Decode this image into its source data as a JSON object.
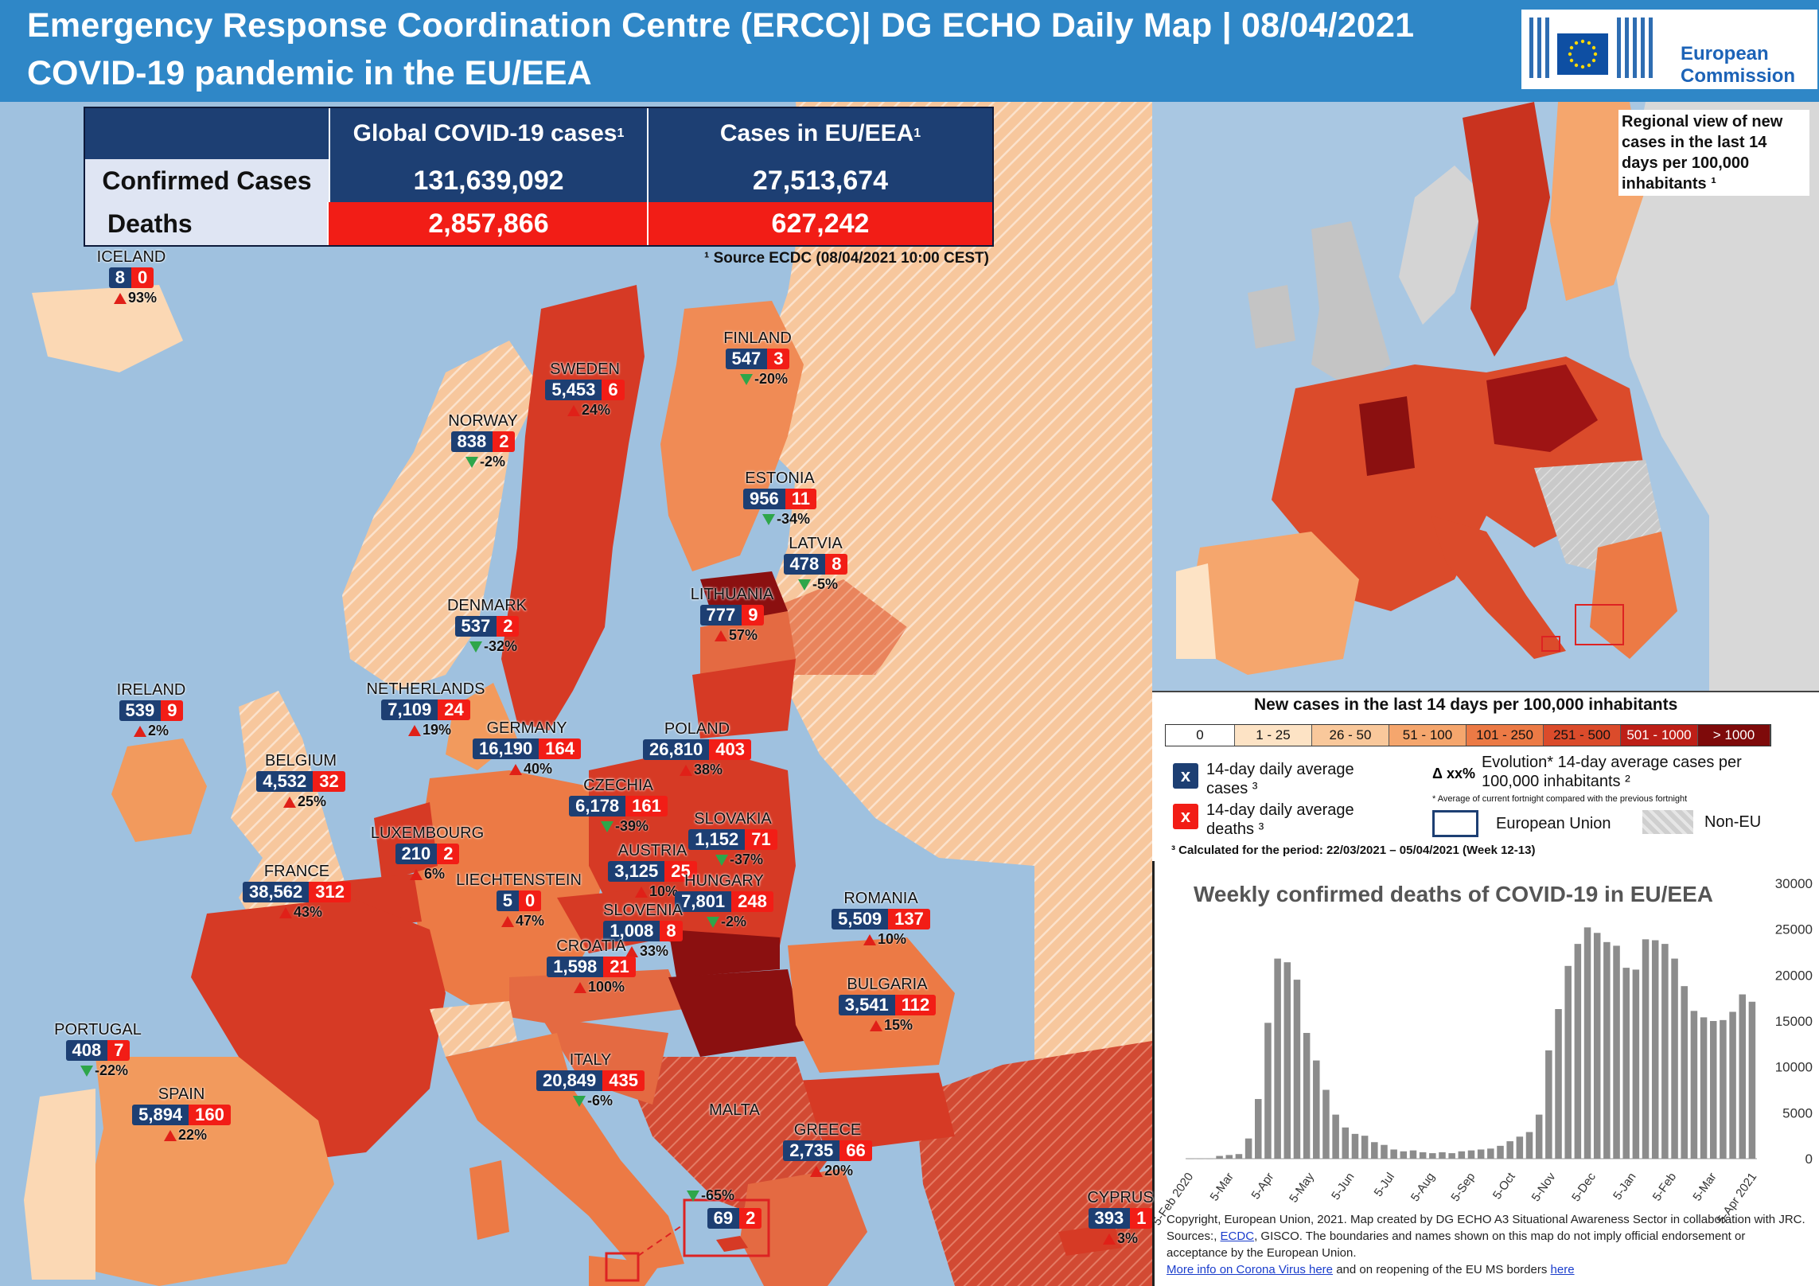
{
  "header": {
    "title_line1": "Emergency Response Coordination Centre (ERCC)| DG ECHO Daily Map | 08/04/2021",
    "title_line2": "COVID-19 pandemic in the EU/EEA",
    "logo_text_1": "European",
    "logo_text_2": "Commission"
  },
  "stats_table": {
    "col_global": "Global COVID-19 cases",
    "col_eu": "Cases in EU/EEA",
    "footnote_mark": "1",
    "row_confirmed_label": "Confirmed Cases",
    "row_deaths_label": "Deaths",
    "global_confirmed": "131,639,092",
    "eu_confirmed": "27,513,674",
    "global_deaths": "2,857,866",
    "eu_deaths": "627,242",
    "source": "¹ Source ECDC (08/04/2021 10:00 CEST)"
  },
  "countries": [
    {
      "name": "ICELAND",
      "cases": "8",
      "deaths": "0",
      "evo": "93%",
      "dir": "up"
    },
    {
      "name": "FINLAND",
      "cases": "547",
      "deaths": "3",
      "evo": "-20%",
      "dir": "down"
    },
    {
      "name": "SWEDEN",
      "cases": "5,453",
      "deaths": "6",
      "evo": "24%",
      "dir": "up"
    },
    {
      "name": "NORWAY",
      "cases": "838",
      "deaths": "2",
      "evo": "-2%",
      "dir": "down"
    },
    {
      "name": "ESTONIA",
      "cases": "956",
      "deaths": "11",
      "evo": "-34%",
      "dir": "down"
    },
    {
      "name": "LATVIA",
      "cases": "478",
      "deaths": "8",
      "evo": "-5%",
      "dir": "down"
    },
    {
      "name": "LITHUANIA",
      "cases": "777",
      "deaths": "9",
      "evo": "57%",
      "dir": "up"
    },
    {
      "name": "DENMARK",
      "cases": "537",
      "deaths": "2",
      "evo": "-32%",
      "dir": "down"
    },
    {
      "name": "IRELAND",
      "cases": "539",
      "deaths": "9",
      "evo": "2%",
      "dir": "up"
    },
    {
      "name": "NETHERLANDS",
      "cases": "7,109",
      "deaths": "24",
      "evo": "19%",
      "dir": "up"
    },
    {
      "name": "GERMANY",
      "cases": "16,190",
      "deaths": "164",
      "evo": "40%",
      "dir": "up"
    },
    {
      "name": "POLAND",
      "cases": "26,810",
      "deaths": "403",
      "evo": "38%",
      "dir": "up"
    },
    {
      "name": "BELGIUM",
      "cases": "4,532",
      "deaths": "32",
      "evo": "25%",
      "dir": "up"
    },
    {
      "name": "CZECHIA",
      "cases": "6,178",
      "deaths": "161",
      "evo": "-39%",
      "dir": "down"
    },
    {
      "name": "SLOVAKIA",
      "cases": "1,152",
      "deaths": "71",
      "evo": "-37%",
      "dir": "down"
    },
    {
      "name": "LUXEMBOURG",
      "cases": "210",
      "deaths": "2",
      "evo": "6%",
      "dir": "up"
    },
    {
      "name": "AUSTRIA",
      "cases": "3,125",
      "deaths": "25",
      "evo": "10%",
      "dir": "up"
    },
    {
      "name": "HUNGARY",
      "cases": "7,801",
      "deaths": "248",
      "evo": "-2%",
      "dir": "down"
    },
    {
      "name": "FRANCE",
      "cases": "38,562",
      "deaths": "312",
      "evo": "43%",
      "dir": "up"
    },
    {
      "name": "LIECHTENSTEIN",
      "cases": "5",
      "deaths": "0",
      "evo": "47%",
      "dir": "up"
    },
    {
      "name": "SLOVENIA",
      "cases": "1,008",
      "deaths": "8",
      "evo": "33%",
      "dir": "up"
    },
    {
      "name": "ROMANIA",
      "cases": "5,509",
      "deaths": "137",
      "evo": "10%",
      "dir": "up"
    },
    {
      "name": "CROATIA",
      "cases": "1,598",
      "deaths": "21",
      "evo": "100%",
      "dir": "up"
    },
    {
      "name": "BULGARIA",
      "cases": "3,541",
      "deaths": "112",
      "evo": "15%",
      "dir": "up"
    },
    {
      "name": "PORTUGAL",
      "cases": "408",
      "deaths": "7",
      "evo": "-22%",
      "dir": "down"
    },
    {
      "name": "ITALY",
      "cases": "20,849",
      "deaths": "435",
      "evo": "-6%",
      "dir": "down"
    },
    {
      "name": "SPAIN",
      "cases": "5,894",
      "deaths": "160",
      "evo": "22%",
      "dir": "up"
    },
    {
      "name": "GREECE",
      "cases": "2,735",
      "deaths": "66",
      "evo": "20%",
      "dir": "up"
    },
    {
      "name": "MALTA",
      "cases": "69",
      "deaths": "2",
      "evo": "-65%",
      "dir": "down"
    },
    {
      "name": "CYPRUS",
      "cases": "393",
      "deaths": "1",
      "evo": "3%",
      "dir": "up"
    }
  ],
  "regional_note": "Regional view of new cases in the last 14 days per 100,000 inhabitants ¹",
  "legend": {
    "title": "New cases in the last 14 days per 100,000 inhabitants",
    "scale": [
      {
        "label": "0",
        "color": "#ffffff"
      },
      {
        "label": "1 - 25",
        "color": "#fde3c5"
      },
      {
        "label": "26 - 50",
        "color": "#f9c89b"
      },
      {
        "label": "51 - 100",
        "color": "#f5a66d"
      },
      {
        "label": "101 - 250",
        "color": "#ec7a45"
      },
      {
        "label": "251 - 500",
        "color": "#db4b2b"
      },
      {
        "label": "501 - 1000",
        "color": "#bd1f17"
      },
      {
        "label": "> 1000",
        "color": "#7e0a0a"
      }
    ],
    "cases_key": "14-day daily average cases ³",
    "deaths_key": "14-day daily average deaths ³",
    "x_mark": "x",
    "evolution_symbol": "Δ xx%",
    "evolution_label": "Evolution* 14-day average cases per 100,000 inhabitants ²",
    "evolution_note": "* Average of current fortnight compared with the previous fortnight",
    "eu_label": "European Union",
    "noneu_label": "Non-EU",
    "period_note": "³ Calculated for the period: 22/03/2021 – 05/04/2021 (Week 12-13)"
  },
  "chart_data": {
    "type": "bar",
    "title": "Weekly confirmed deaths of COVID-19 in EU/EEA",
    "ylim": [
      0,
      30000
    ],
    "yticks": [
      "0",
      "5000",
      "10000",
      "15000",
      "20000",
      "25000",
      "30000"
    ],
    "xticks": [
      "5-Feb 2020",
      "5-Mar",
      "5-Apr",
      "5-May",
      "5-Jun",
      "5-Jul",
      "5-Aug",
      "5-Sep",
      "5-Oct",
      "5-Nov",
      "5-Dec",
      "5-Jan",
      "5-Feb",
      "5-Mar",
      "5-Apr 2021"
    ],
    "values": [
      0,
      0,
      0,
      300,
      400,
      500,
      2200,
      6500,
      14800,
      21800,
      21400,
      19500,
      13700,
      10700,
      7500,
      4800,
      3400,
      2700,
      2500,
      1800,
      1500,
      1000,
      800,
      900,
      700,
      600,
      700,
      600,
      800,
      900,
      1000,
      1100,
      1400,
      1900,
      2400,
      2900,
      4800,
      11800,
      16300,
      21000,
      23400,
      25200,
      24600,
      23600,
      23200,
      20800,
      20600,
      23900,
      23800,
      23400,
      21800,
      18800,
      16100,
      15400,
      15000,
      15100,
      16000,
      17900,
      17100
    ]
  },
  "copyright": {
    "text1": "Copyright, European Union, 2021. Map created by DG ECHO A3 Situational Awareness Sector in collaboration with JRC. Sources:,",
    "link_ecdc": "ECDC",
    "text2": ", GISCO. The boundaries and names shown on this map do not imply official endorsement or acceptance by the European Union.",
    "link_more": "More info on Corona Virus here",
    "text3": "and on reopening of the EU MS borders",
    "link_here": "here"
  },
  "colors": {
    "header_bg": "#2f87c7",
    "navy": "#1d3f73",
    "red": "#f21d16",
    "sea": "#9fc1df"
  }
}
